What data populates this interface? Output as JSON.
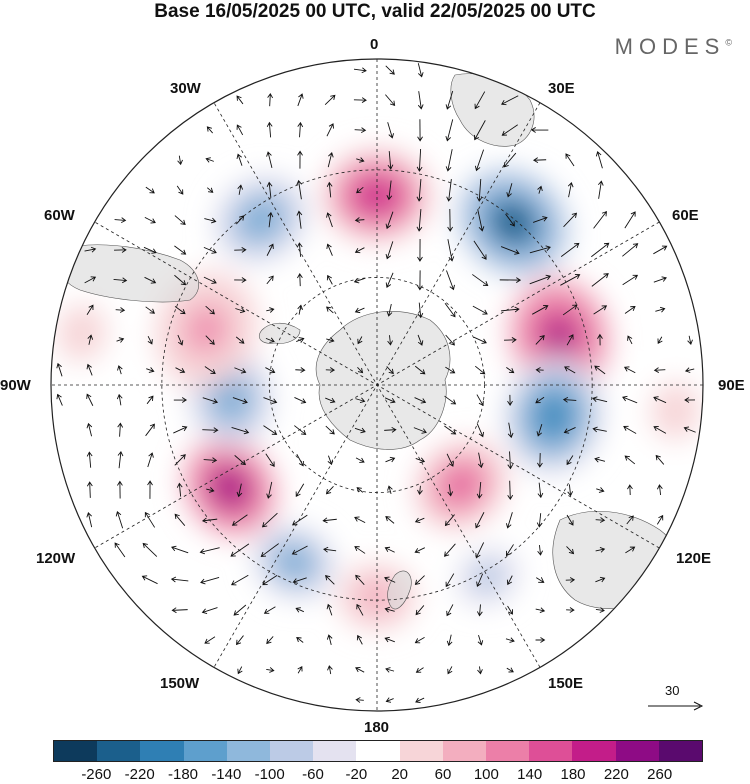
{
  "title": "Base 16/05/2025 00 UTC, valid 22/05/2025 00 UTC",
  "brand": "MODES",
  "brand_mark": "©",
  "map_labels": {
    "top": "0",
    "bottom": "180",
    "left": "90W",
    "right": "90E",
    "upper_left_30": "30W",
    "upper_left_60": "60W",
    "upper_right_30": "30E",
    "upper_right_60": "60E",
    "lower_left_120": "120W",
    "lower_left_150": "150W",
    "lower_right_120": "120E",
    "lower_right_150": "150E"
  },
  "vector_scale": {
    "label": "30"
  },
  "colorbar": {
    "colors": [
      "#0d3a5c",
      "#1b5f8c",
      "#2f7fb4",
      "#5e9fcd",
      "#8fb8dc",
      "#bccbe6",
      "#e4e2f0",
      "#ffffff",
      "#f7d5d8",
      "#f3aebf",
      "#ec7fa8",
      "#de4f97",
      "#c31d89",
      "#8e0b85",
      "#5a0a6e"
    ],
    "ticks": [
      "-260",
      "-220",
      "-180",
      "-140",
      "-100",
      "-60",
      "-20",
      "20",
      "60",
      "100",
      "140",
      "180",
      "220",
      "260"
    ]
  },
  "anomalies": [
    {
      "lon": 0,
      "r": 0.58,
      "value": 200,
      "size": 0.17
    },
    {
      "lon": 40,
      "r": 0.65,
      "value": -260,
      "size": 0.18
    },
    {
      "lon": 75,
      "r": 0.58,
      "value": 230,
      "size": 0.18
    },
    {
      "lon": 100,
      "r": 0.55,
      "value": -190,
      "size": 0.18
    },
    {
      "lon": 140,
      "r": 0.4,
      "value": 160,
      "size": 0.15
    },
    {
      "lon": 150,
      "r": 0.68,
      "value": -100,
      "size": 0.1
    },
    {
      "lon": 180,
      "r": 0.65,
      "value": 80,
      "size": 0.12
    },
    {
      "lon": -155,
      "r": 0.6,
      "value": -150,
      "size": 0.13
    },
    {
      "lon": -125,
      "r": 0.55,
      "value": 250,
      "size": 0.16
    },
    {
      "lon": -95,
      "r": 0.45,
      "value": -160,
      "size": 0.15
    },
    {
      "lon": -72,
      "r": 0.55,
      "value": 110,
      "size": 0.18
    },
    {
      "lon": -35,
      "r": 0.62,
      "value": -150,
      "size": 0.15
    },
    {
      "lon": -80,
      "r": 0.92,
      "value": 60,
      "size": 0.12
    },
    {
      "lon": 95,
      "r": 0.92,
      "value": 40,
      "size": 0.12
    }
  ]
}
